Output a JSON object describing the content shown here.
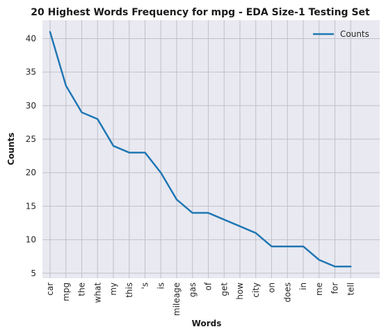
{
  "chart_data": {
    "type": "line",
    "title": "20 Highest Words Frequency for mpg - EDA Size-1 Testing Set",
    "xlabel": "Words",
    "ylabel": "Counts",
    "categories": [
      "car",
      "mpg",
      "the",
      "what",
      "my",
      "this",
      "'s",
      "is",
      "mileage",
      "gas",
      "of",
      "get",
      "how",
      "city",
      "on",
      "does",
      "in",
      "me",
      "for",
      "tell"
    ],
    "series": [
      {
        "name": "Counts",
        "values": [
          41,
          33,
          29,
          28,
          24,
          23,
          23,
          20,
          16,
          14,
          14,
          13,
          12,
          11,
          9,
          9,
          9,
          7,
          6,
          6
        ],
        "color": "#1f77b4"
      }
    ],
    "ylim": [
      4.25,
      42.75
    ],
    "yticks": [
      5,
      10,
      15,
      20,
      25,
      30,
      35,
      40
    ],
    "grid": true,
    "legend_position": "top-right",
    "background": "#e9e9f1",
    "grid_color": "#c0c0c8"
  }
}
